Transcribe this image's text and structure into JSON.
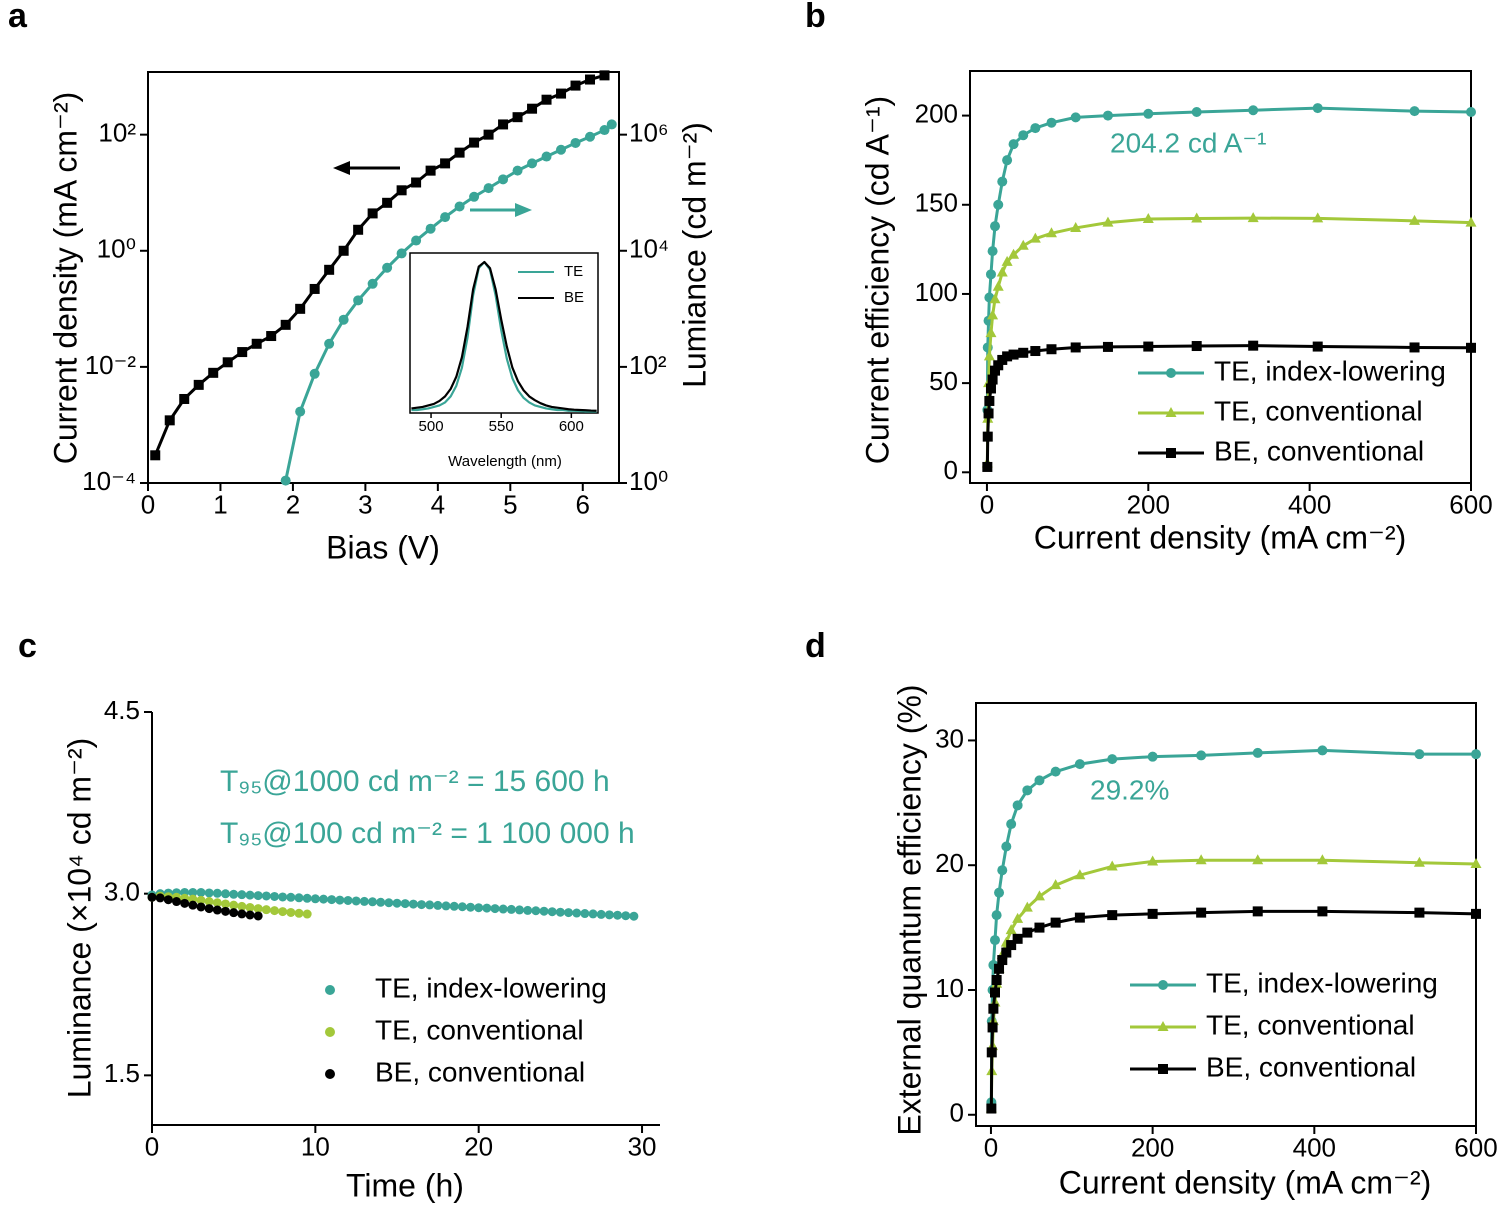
{
  "chart_data": [
    {
      "type": "line",
      "label": "a",
      "xlabel": "Bias (V)",
      "ylabel": "Current density (mA cm⁻²)",
      "y2label": "Lumiance (cd m⁻²)",
      "xlim": [
        0,
        6.5
      ],
      "xticks": [
        0,
        1,
        2,
        3,
        4,
        5,
        6
      ],
      "yscale": "log",
      "ylim": [
        0.0001,
        1200
      ],
      "yticks": [
        {
          "value": 0.0001,
          "label": "10⁻⁴"
        },
        {
          "value": 0.01,
          "label": "10⁻²"
        },
        {
          "value": 1,
          "label": "10⁰"
        },
        {
          "value": 100,
          "label": "10²"
        }
      ],
      "y2scale": "log",
      "y2lim": [
        1,
        12000000
      ],
      "y2ticks": [
        {
          "value": 1,
          "label": "10⁰"
        },
        {
          "value": 100,
          "label": "10²"
        },
        {
          "value": 10000,
          "label": "10⁴"
        },
        {
          "value": 1000000,
          "label": "10⁶"
        }
      ],
      "series": [
        {
          "color": "#000000",
          "marker": "square",
          "x": [
            0.1,
            0.3,
            0.5,
            0.7,
            0.9,
            1.1,
            1.3,
            1.5,
            1.7,
            1.9,
            2.1,
            2.3,
            2.5,
            2.7,
            2.9,
            3.1,
            3.3,
            3.5,
            3.7,
            3.9,
            4.1,
            4.3,
            4.5,
            4.7,
            4.9,
            5.1,
            5.3,
            5.5,
            5.7,
            5.9,
            6.1,
            6.3
          ],
          "values": [
            0.0003,
            0.0012,
            0.0028,
            0.0049,
            0.0079,
            0.012,
            0.018,
            0.025,
            0.034,
            0.053,
            0.1,
            0.22,
            0.47,
            1.0,
            2.3,
            4.4,
            6.7,
            11,
            15,
            24,
            32,
            49,
            73,
            100,
            150,
            200,
            280,
            400,
            510,
            700,
            890,
            1050
          ]
        },
        {
          "color": "#3aa597",
          "marker": "circle",
          "axis": "y2",
          "x": [
            1.9,
            2.1,
            2.3,
            2.5,
            2.7,
            2.9,
            3.1,
            3.3,
            3.5,
            3.7,
            3.9,
            4.1,
            4.3,
            4.5,
            4.7,
            4.9,
            5.1,
            5.3,
            5.5,
            5.7,
            5.9,
            6.1,
            6.3,
            6.4
          ],
          "values": [
            1.1,
            17,
            76,
            250,
            650,
            1400,
            2700,
            5100,
            9000,
            15000,
            24000,
            38000,
            58000,
            85000,
            120000,
            170000,
            240000,
            320000,
            420000,
            550000,
            720000,
            920000,
            1200000,
            1500000
          ]
        }
      ]
    },
    {
      "type": "line",
      "xlabel": "Wavelength (nm)",
      "xlim": [
        485,
        619
      ],
      "xticks": [
        500,
        550,
        600
      ],
      "ylim": [
        0,
        1.06
      ],
      "series": [
        {
          "name": "TE",
          "color": "#3aa597",
          "x": [
            486,
            490,
            494,
            498,
            502,
            506,
            510,
            514,
            518,
            522,
            526,
            530,
            534,
            538,
            542,
            546,
            550,
            554,
            558,
            562,
            566,
            570,
            574,
            578,
            582,
            586,
            590,
            594,
            598,
            602,
            606,
            610,
            614,
            618
          ],
          "values": [
            0.02,
            0.02,
            0.025,
            0.03,
            0.04,
            0.05,
            0.07,
            0.11,
            0.18,
            0.3,
            0.5,
            0.78,
            0.96,
            1.0,
            0.95,
            0.78,
            0.55,
            0.36,
            0.23,
            0.15,
            0.1,
            0.07,
            0.05,
            0.04,
            0.03,
            0.025,
            0.02,
            0.02,
            0.015,
            0.015,
            0.012,
            0.01,
            0.01,
            0.01
          ]
        },
        {
          "name": "BE",
          "color": "#000000",
          "x": [
            486,
            490,
            494,
            498,
            502,
            506,
            510,
            514,
            518,
            522,
            526,
            530,
            534,
            538,
            542,
            546,
            550,
            554,
            558,
            562,
            566,
            570,
            574,
            578,
            582,
            586,
            590,
            594,
            598,
            602,
            606,
            610,
            614,
            618
          ],
          "values": [
            0.03,
            0.035,
            0.04,
            0.05,
            0.06,
            0.08,
            0.11,
            0.16,
            0.24,
            0.37,
            0.57,
            0.82,
            0.97,
            1.0,
            0.96,
            0.82,
            0.62,
            0.44,
            0.3,
            0.21,
            0.15,
            0.11,
            0.085,
            0.065,
            0.05,
            0.04,
            0.035,
            0.03,
            0.025,
            0.022,
            0.02,
            0.018,
            0.016,
            0.015
          ]
        }
      ]
    },
    {
      "type": "line",
      "label": "b",
      "xlabel": "Current density (mA cm⁻²)",
      "ylabel": "Current efficiency (cd A⁻¹)",
      "annotations": [
        "204.2 cd A⁻¹"
      ],
      "annotation_color": "#3aa597",
      "xlim": [
        -21,
        600
      ],
      "xticks": [
        0,
        200,
        400,
        600
      ],
      "ylim": [
        -6,
        225
      ],
      "yticks": [
        0,
        50,
        100,
        150,
        200
      ],
      "x": [
        0.5,
        1,
        2,
        3,
        5,
        7,
        10,
        14,
        19,
        25,
        33,
        45,
        60,
        80,
        110,
        150,
        200,
        260,
        330,
        410,
        530,
        600
      ],
      "series": [
        {
          "name": "TE, index-lowering",
          "color": "#3aa597",
          "marker": "circle",
          "values": [
            35,
            70,
            85,
            98,
            111,
            124,
            138,
            150,
            163,
            175,
            184,
            189,
            193,
            196,
            199,
            200,
            201,
            202,
            203,
            204.2,
            202.5,
            202
          ]
        },
        {
          "name": "TE, conventional",
          "color": "#a3c83a",
          "marker": "triangle",
          "values": [
            5,
            30,
            50,
            65,
            78,
            88,
            97,
            104,
            112,
            118,
            122,
            127,
            131,
            134,
            137,
            140,
            142,
            142.3,
            142.5,
            142.4,
            141,
            140
          ]
        },
        {
          "name": "BE, conventional",
          "color": "#000000",
          "marker": "square",
          "values": [
            3,
            20,
            33,
            40,
            47,
            52,
            57,
            60,
            63,
            65,
            66,
            67,
            68,
            69,
            70,
            70.3,
            70.5,
            70.8,
            71,
            70.5,
            70,
            69.8
          ]
        }
      ]
    },
    {
      "type": "scatter",
      "label": "c",
      "xlabel": "Time (h)",
      "ylabel": "Luminance (×10⁴ cd m⁻²)",
      "annotations": [
        "T₉₅@1000 cd m⁻² = 15 600 h",
        "T₉₅@100 cd m⁻² = 1 100 000 h"
      ],
      "annotation_color": "#3aa597",
      "xlim": [
        0,
        31.1
      ],
      "xticks": [
        0,
        10,
        20,
        30
      ],
      "ylim": [
        1.09,
        4.5
      ],
      "yticks": [
        1.5,
        {
          "value": 3,
          "label": "3.0"
        },
        4.5
      ],
      "series": [
        {
          "name": "TE, index-lowering",
          "color": "#3aa597",
          "x": [
            0,
            0.5,
            1,
            1.5,
            2,
            2.5,
            3,
            3.5,
            4,
            4.5,
            5,
            5.5,
            6,
            6.5,
            7,
            7.5,
            8,
            8.5,
            9,
            9.5,
            10,
            10.5,
            11,
            11.5,
            12,
            12.5,
            13,
            13.5,
            14,
            14.5,
            15,
            15.5,
            16,
            16.5,
            17,
            17.5,
            18,
            18.5,
            19,
            19.5,
            20,
            20.5,
            21,
            21.5,
            22,
            22.5,
            23,
            23.5,
            24,
            24.5,
            25,
            25.5,
            26,
            26.5,
            27,
            27.5,
            28,
            28.5,
            29,
            29.5
          ],
          "values": [
            2.99,
            3.0,
            3.005,
            3.008,
            3.01,
            3.01,
            3.01,
            3.006,
            3.003,
            2.999,
            2.995,
            2.992,
            2.988,
            2.984,
            2.981,
            2.977,
            2.973,
            2.97,
            2.966,
            2.962,
            2.958,
            2.955,
            2.951,
            2.947,
            2.944,
            2.94,
            2.936,
            2.933,
            2.929,
            2.925,
            2.921,
            2.918,
            2.914,
            2.91,
            2.907,
            2.903,
            2.899,
            2.896,
            2.892,
            2.888,
            2.884,
            2.881,
            2.877,
            2.873,
            2.87,
            2.866,
            2.862,
            2.859,
            2.855,
            2.851,
            2.847,
            2.844,
            2.84,
            2.836,
            2.833,
            2.829,
            2.825,
            2.822,
            2.818,
            2.814
          ]
        },
        {
          "name": "TE, conventional",
          "color": "#a3c83a",
          "x": [
            0,
            0.5,
            1,
            1.5,
            2,
            2.5,
            3,
            3.5,
            4,
            4.5,
            5,
            5.5,
            6,
            6.5,
            7,
            7.5,
            8,
            8.5,
            9,
            9.5
          ],
          "values": [
            2.97,
            2.98,
            2.975,
            2.97,
            2.962,
            2.955,
            2.945,
            2.935,
            2.925,
            2.915,
            2.905,
            2.895,
            2.886,
            2.877,
            2.868,
            2.86,
            2.852,
            2.845,
            2.838,
            2.832
          ]
        },
        {
          "name": "BE, conventional",
          "color": "#000000",
          "x": [
            0,
            0.5,
            1,
            1.5,
            2,
            2.5,
            3,
            3.5,
            4,
            4.5,
            5,
            5.5,
            6,
            6.5
          ],
          "values": [
            2.97,
            2.965,
            2.95,
            2.935,
            2.92,
            2.905,
            2.89,
            2.877,
            2.865,
            2.854,
            2.843,
            2.833,
            2.824,
            2.816
          ]
        }
      ]
    },
    {
      "type": "line",
      "label": "d",
      "xlabel": "Current density (mA cm⁻²)",
      "ylabel": "External quantum efficiency (%)",
      "annotations": [
        "29.2%"
      ],
      "annotation_color": "#3aa597",
      "xlim": [
        -18.5,
        600
      ],
      "xticks": [
        0,
        200,
        400,
        600
      ],
      "ylim": [
        -0.9,
        33
      ],
      "yticks": [
        0,
        10,
        20,
        30
      ],
      "x": [
        0.5,
        1,
        2,
        3,
        5,
        7,
        10,
        14,
        19,
        25,
        33,
        45,
        60,
        80,
        110,
        150,
        200,
        260,
        330,
        410,
        530,
        600
      ],
      "series": [
        {
          "name": "TE, index-lowering",
          "color": "#3aa597",
          "marker": "circle",
          "values": [
            1,
            7.5,
            10,
            12,
            14,
            16,
            17.8,
            19.6,
            21.5,
            23.3,
            24.8,
            26,
            26.8,
            27.5,
            28.1,
            28.5,
            28.7,
            28.8,
            29,
            29.2,
            28.9,
            28.9
          ]
        },
        {
          "name": "TE, conventional",
          "color": "#a3c83a",
          "marker": "triangle",
          "values": [
            0.5,
            3.5,
            5.5,
            7.5,
            9,
            10.5,
            11.7,
            12.8,
            13.8,
            14.8,
            15.7,
            16.6,
            17.5,
            18.4,
            19.2,
            19.9,
            20.3,
            20.4,
            20.4,
            20.4,
            20.2,
            20.1
          ]
        },
        {
          "name": "BE, conventional",
          "color": "#000000",
          "marker": "square",
          "values": [
            0.5,
            5,
            7,
            8.5,
            9.8,
            10.8,
            11.7,
            12.4,
            13,
            13.6,
            14.1,
            14.6,
            15,
            15.4,
            15.8,
            16,
            16.1,
            16.2,
            16.3,
            16.3,
            16.2,
            16.1
          ]
        }
      ]
    }
  ]
}
